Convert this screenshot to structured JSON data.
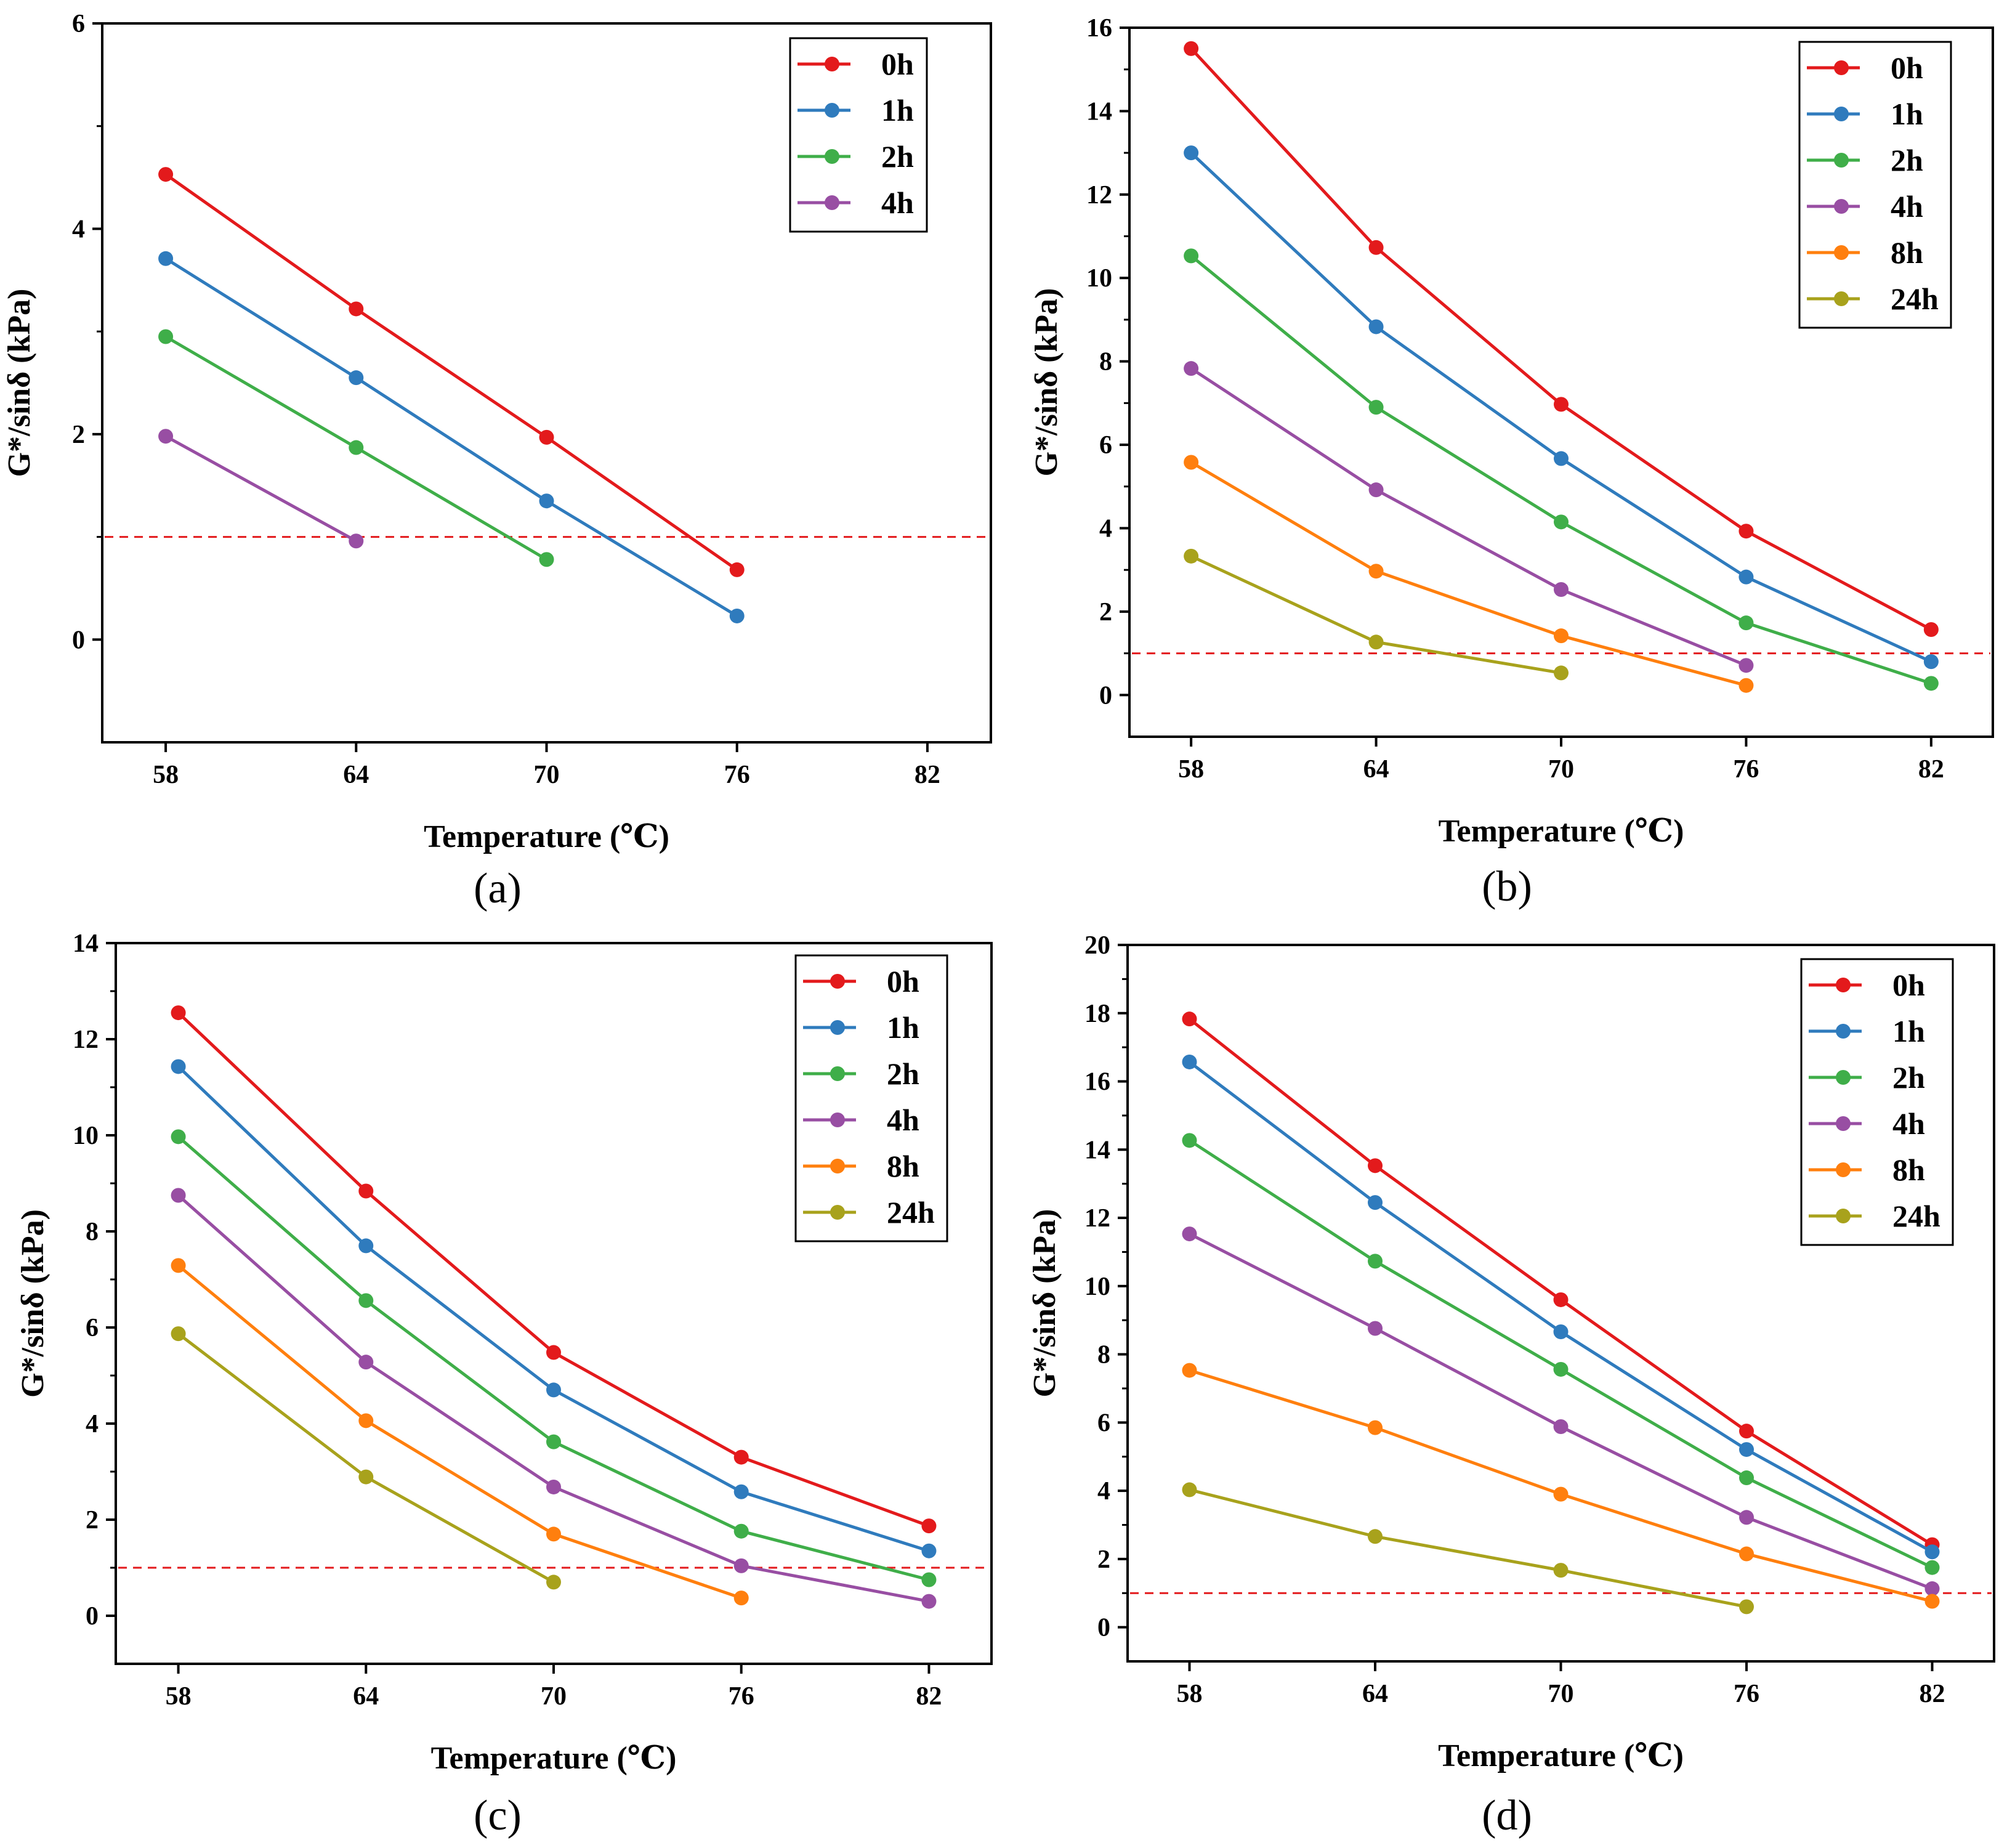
{
  "chart_data": [
    {
      "type": "line",
      "panel_label": "(a)",
      "xlabel": "Temperature (℃)",
      "ylabel": "G*/sinδ (kPa)",
      "x": [
        58,
        64,
        70,
        76,
        82
      ],
      "xlim": [
        56,
        84
      ],
      "ylim": [
        -1,
        6
      ],
      "yticks": [
        0,
        2,
        4,
        6
      ],
      "reference_line": 1,
      "legend_position": "top-right",
      "series": [
        {
          "name": "0h",
          "color": "#e31a1c",
          "values": [
            4.53,
            3.22,
            1.97,
            0.68,
            null
          ]
        },
        {
          "name": "1h",
          "color": "#2f7bbd",
          "values": [
            3.71,
            2.55,
            1.35,
            0.23,
            null
          ]
        },
        {
          "name": "2h",
          "color": "#3fae49",
          "values": [
            2.95,
            1.87,
            0.78,
            null,
            null
          ]
        },
        {
          "name": "4h",
          "color": "#984ea3",
          "values": [
            1.98,
            0.96,
            null,
            null,
            null
          ]
        }
      ]
    },
    {
      "type": "line",
      "panel_label": "(b)",
      "xlabel": "Temperature (℃)",
      "ylabel": "G*/sinδ (kPa)",
      "x": [
        58,
        64,
        70,
        76,
        82
      ],
      "xlim": [
        56,
        84
      ],
      "ylim": [
        -1,
        16
      ],
      "yticks": [
        0,
        2,
        4,
        6,
        8,
        10,
        12,
        14,
        16
      ],
      "reference_line": 1,
      "legend_position": "top-right",
      "series": [
        {
          "name": "0h",
          "color": "#e31a1c",
          "values": [
            15.5,
            10.73,
            6.97,
            3.93,
            1.57
          ]
        },
        {
          "name": "1h",
          "color": "#2f7bbd",
          "values": [
            13.0,
            8.83,
            5.67,
            2.83,
            0.8
          ]
        },
        {
          "name": "2h",
          "color": "#3fae49",
          "values": [
            10.53,
            6.9,
            4.15,
            1.73,
            0.28
          ]
        },
        {
          "name": "4h",
          "color": "#984ea3",
          "values": [
            7.83,
            4.92,
            2.53,
            0.71,
            null
          ]
        },
        {
          "name": "8h",
          "color": "#ff7f0e",
          "values": [
            5.58,
            2.97,
            1.42,
            0.23,
            null
          ]
        },
        {
          "name": "24h",
          "color": "#a8a21c",
          "values": [
            3.33,
            1.27,
            0.53,
            null,
            null
          ]
        }
      ]
    },
    {
      "type": "line",
      "panel_label": "(c)",
      "xlabel": "Temperature (℃)",
      "ylabel": "G*/sinδ (kPa)",
      "x": [
        58,
        64,
        70,
        76,
        82
      ],
      "xlim": [
        56,
        84
      ],
      "ylim": [
        -1,
        14
      ],
      "yticks": [
        0,
        2,
        4,
        6,
        8,
        10,
        12,
        14
      ],
      "reference_line": 1,
      "legend_position": "top-right",
      "series": [
        {
          "name": "0h",
          "color": "#e31a1c",
          "values": [
            12.55,
            8.84,
            5.48,
            3.3,
            1.87
          ]
        },
        {
          "name": "1h",
          "color": "#2f7bbd",
          "values": [
            11.43,
            7.7,
            4.7,
            2.58,
            1.35
          ]
        },
        {
          "name": "2h",
          "color": "#3fae49",
          "values": [
            9.97,
            6.56,
            3.62,
            1.76,
            0.75
          ]
        },
        {
          "name": "4h",
          "color": "#984ea3",
          "values": [
            8.75,
            5.28,
            2.68,
            1.04,
            0.3
          ]
        },
        {
          "name": "8h",
          "color": "#ff7f0e",
          "values": [
            7.29,
            4.06,
            1.7,
            0.37,
            null
          ]
        },
        {
          "name": "24h",
          "color": "#a8a21c",
          "values": [
            5.87,
            2.89,
            0.7,
            null,
            null
          ]
        }
      ]
    },
    {
      "type": "line",
      "panel_label": "(d)",
      "xlabel": "Temperature (℃)",
      "ylabel": "G*/sinδ (kPa)",
      "x": [
        58,
        64,
        70,
        76,
        82
      ],
      "xlim": [
        56,
        84
      ],
      "ylim": [
        -1,
        20
      ],
      "yticks": [
        0,
        2,
        4,
        6,
        8,
        10,
        12,
        14,
        16,
        18,
        20
      ],
      "reference_line": 1,
      "legend_position": "top-right",
      "series": [
        {
          "name": "0h",
          "color": "#e31a1c",
          "values": [
            17.83,
            13.53,
            9.6,
            5.75,
            2.42
          ]
        },
        {
          "name": "1h",
          "color": "#2f7bbd",
          "values": [
            16.57,
            12.45,
            8.66,
            5.21,
            2.21
          ]
        },
        {
          "name": "2h",
          "color": "#3fae49",
          "values": [
            14.27,
            10.73,
            7.56,
            4.38,
            1.75
          ]
        },
        {
          "name": "4h",
          "color": "#984ea3",
          "values": [
            11.53,
            8.76,
            5.88,
            3.22,
            1.13
          ]
        },
        {
          "name": "8h",
          "color": "#ff7f0e",
          "values": [
            7.53,
            5.85,
            3.9,
            2.15,
            0.76
          ]
        },
        {
          "name": "24h",
          "color": "#a8a21c",
          "values": [
            4.03,
            2.66,
            1.67,
            0.6,
            null
          ]
        }
      ]
    }
  ]
}
